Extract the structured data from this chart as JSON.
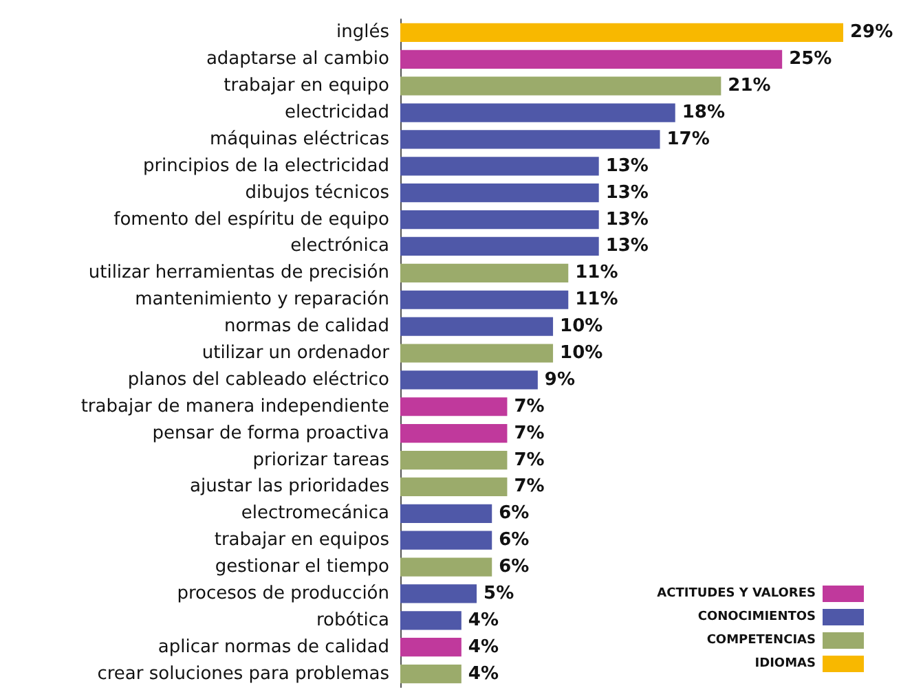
{
  "chart_data": {
    "type": "bar",
    "orientation": "horizontal",
    "stacked": true,
    "legend": "bottom right",
    "categories": [
      "inglés",
      "adaptarse al cambio",
      "trabajar en equipo",
      "electricidad",
      "máquinas eléctricas",
      "principios de la electricidad",
      "dibujos técnicos",
      "fomento del espíritu de equipo",
      "electrónica",
      "utilizar herramientas de precisión",
      "mantenimiento y reparación",
      "normas de calidad",
      "utilizar un ordenador",
      "planos del cableado eléctrico",
      "trabajar de manera independiente",
      "pensar de forma proactiva",
      "priorizar tareas",
      "ajustar las prioridades",
      "electromecánica",
      "trabajar en equipos",
      "gestionar el tiempo",
      "procesos de producción",
      "robótica",
      "aplicar normas de calidad",
      "crear soluciones para problemas"
    ],
    "series": [
      {
        "name": "ACTITUDES Y VALORES",
        "color": "#c0399c",
        "values": [
          null,
          25,
          null,
          null,
          null,
          null,
          null,
          null,
          null,
          null,
          null,
          null,
          null,
          null,
          7,
          7,
          null,
          null,
          null,
          null,
          null,
          null,
          null,
          4,
          null
        ],
        "value_labels": [
          null,
          "25%",
          null,
          null,
          null,
          null,
          null,
          null,
          null,
          null,
          null,
          null,
          null,
          null,
          "7%",
          "7%",
          null,
          null,
          null,
          null,
          null,
          null,
          null,
          "4%",
          null
        ]
      },
      {
        "name": "CONOCIMIENTOS",
        "color": "#4f58a8",
        "values": [
          null,
          null,
          null,
          18,
          17,
          13,
          13,
          13,
          13,
          null,
          11,
          10,
          null,
          9,
          null,
          null,
          null,
          null,
          6,
          6,
          null,
          5,
          4,
          null,
          null
        ],
        "value_labels": [
          null,
          null,
          null,
          "18%",
          "17%",
          "13%",
          "13%",
          "13%",
          "13%",
          null,
          "11%",
          "10%",
          null,
          "9%",
          null,
          null,
          null,
          null,
          "6%",
          "6%",
          null,
          "5%",
          "4%",
          null,
          null
        ]
      },
      {
        "name": "COMPETENCIAS",
        "color": "#9bab6b",
        "values": [
          null,
          null,
          21,
          null,
          null,
          null,
          null,
          null,
          null,
          11,
          null,
          null,
          10,
          null,
          null,
          null,
          7,
          7,
          null,
          null,
          6,
          null,
          null,
          null,
          4
        ],
        "value_labels": [
          null,
          null,
          "21%",
          null,
          null,
          null,
          null,
          null,
          null,
          "11%",
          null,
          null,
          "10%",
          null,
          null,
          null,
          "7%",
          "7%",
          null,
          null,
          "6%",
          null,
          null,
          null,
          "4%"
        ]
      },
      {
        "name": "IDIOMAS",
        "color": "#f8b800",
        "values": [
          29,
          null,
          null,
          null,
          null,
          null,
          null,
          null,
          null,
          null,
          null,
          null,
          null,
          null,
          null,
          null,
          null,
          null,
          null,
          null,
          null,
          null,
          null,
          null,
          null
        ],
        "value_labels": [
          "29%",
          null,
          null,
          null,
          null,
          null,
          null,
          null,
          null,
          null,
          null,
          null,
          null,
          null,
          null,
          null,
          null,
          null,
          null,
          null,
          null,
          null,
          null,
          null,
          null
        ]
      }
    ]
  }
}
